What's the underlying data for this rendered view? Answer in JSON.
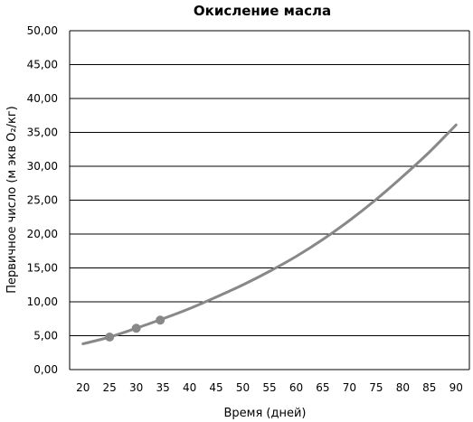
{
  "chart_data": {
    "type": "line",
    "title": "Окисление масла",
    "xlabel": "Время (дней)",
    "ylabel": "Первичное число (м экв O₂/кг)",
    "x_ticks": [
      "20",
      "25",
      "30",
      "35",
      "40",
      "45",
      "50",
      "55",
      "60",
      "65",
      "70",
      "75",
      "80",
      "85",
      "90"
    ],
    "y_ticks": [
      "0,00",
      "5,00",
      "10,00",
      "15,00",
      "20,00",
      "25,00",
      "30,00",
      "35,00",
      "40,00",
      "45,00",
      "50,00"
    ],
    "xlim": [
      17.5,
      92.5
    ],
    "ylim": [
      0,
      50
    ],
    "grid": true,
    "series": [
      {
        "type": "markers",
        "points": [
          [
            25,
            4.8
          ],
          [
            30,
            6.1
          ],
          [
            34.5,
            7.3
          ]
        ]
      },
      {
        "type": "curve",
        "points": [
          [
            20,
            3.8
          ],
          [
            25,
            4.8
          ],
          [
            30,
            6.1
          ],
          [
            35,
            7.5
          ],
          [
            40,
            9.0
          ],
          [
            45,
            10.7
          ],
          [
            50,
            12.5
          ],
          [
            55,
            14.5
          ],
          [
            60,
            16.7
          ],
          [
            65,
            19.2
          ],
          [
            70,
            22.0
          ],
          [
            75,
            25.1
          ],
          [
            80,
            28.5
          ],
          [
            85,
            32.1
          ],
          [
            90,
            36.1
          ]
        ]
      }
    ],
    "colors": {
      "line": "#888888",
      "grid": "#000000"
    }
  }
}
